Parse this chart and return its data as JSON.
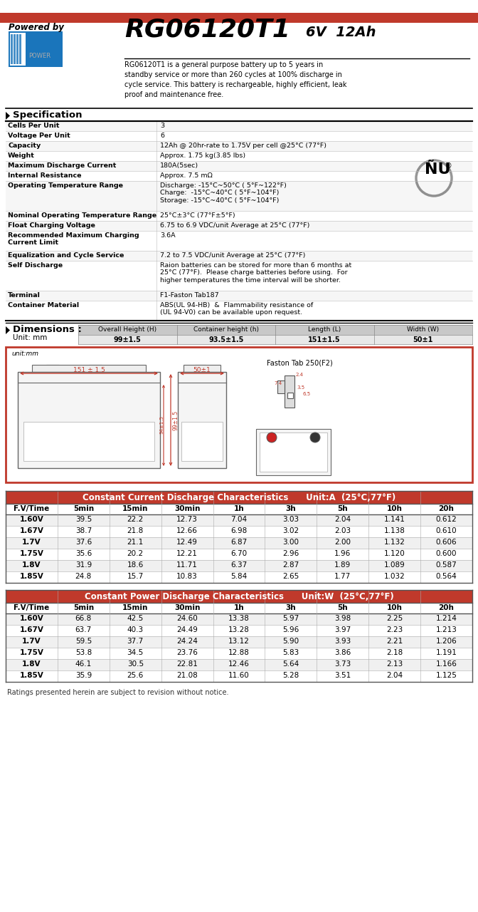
{
  "title_model": "RG06120T1",
  "title_voltage": "6V",
  "title_ah": "12Ah",
  "powered_by": "Powered by",
  "description": "RG06120T1 is a general purpose battery up to 5 years in\nstandby service or more than 260 cycles at 100% discharge in\ncycle service. This battery is rechargeable, highly efficient, leak\nproof and maintenance free.",
  "header_bar_color": "#c0392b",
  "spec_header": "Specification",
  "spec_rows": [
    [
      "Cells Per Unit",
      "3"
    ],
    [
      "Voltage Per Unit",
      "6"
    ],
    [
      "Capacity",
      "12Ah @ 20hr-rate to 1.75V per cell @25°C (77°F)"
    ],
    [
      "Weight",
      "Approx. 1.75 kg(3.85 lbs)"
    ],
    [
      "Maximum Discharge Current",
      "180A(5sec)"
    ],
    [
      "Internal Resistance",
      "Approx. 7.5 mΩ"
    ],
    [
      "Operating Temperature Range",
      "Discharge: -15°C~50°C ( 5°F~122°F)\nCharge:  -15°C~40°C ( 5°F~104°F)\nStorage: -15°C~40°C ( 5°F~104°F)"
    ],
    [
      "Nominal Operating Temperature Range",
      "25°C±3°C (77°F±5°F)"
    ],
    [
      "Float Charging Voltage",
      "6.75 to 6.9 VDC/unit Average at 25°C (77°F)"
    ],
    [
      "Recommended Maximum Charging\nCurrent Limit",
      "3.6A"
    ],
    [
      "Equalization and Cycle Service",
      "7.2 to 7.5 VDC/unit Average at 25°C (77°F)"
    ],
    [
      "Self Discharge",
      "Raion batteries can be stored for more than 6 months at\n25°C (77°F).  Please charge batteries before using.  For\nhigher temperatures the time interval will be shorter."
    ],
    [
      "Terminal",
      "F1-Faston Tab187"
    ],
    [
      "Container Material",
      "ABS(UL 94-HB)  &  Flammability resistance of\n(UL 94-V0) can be available upon request."
    ]
  ],
  "spec_row_heights": [
    14,
    14,
    14,
    14,
    14,
    14,
    42,
    14,
    14,
    28,
    14,
    42,
    14,
    28
  ],
  "dim_header": "Dimensions :",
  "dim_unit": "Unit: mm",
  "dim_cols": [
    "Overall Height (H)",
    "Container height (h)",
    "Length (L)",
    "Width (W)"
  ],
  "dim_vals": [
    "99±1.5",
    "93.5±1.5",
    "151±1.5",
    "50±1"
  ],
  "cc_header": "Constant Current Discharge Characteristics",
  "cc_unit": "Unit:A  (25°C,77°F)",
  "cc_header_color": "#c0392b",
  "cc_cols": [
    "F.V/Time",
    "5min",
    "15min",
    "30min",
    "1h",
    "3h",
    "5h",
    "10h",
    "20h"
  ],
  "cc_rows": [
    [
      "1.60V",
      "39.5",
      "22.2",
      "12.73",
      "7.04",
      "3.03",
      "2.04",
      "1.141",
      "0.612"
    ],
    [
      "1.67V",
      "38.7",
      "21.8",
      "12.66",
      "6.98",
      "3.02",
      "2.03",
      "1.138",
      "0.610"
    ],
    [
      "1.7V",
      "37.6",
      "21.1",
      "12.49",
      "6.87",
      "3.00",
      "2.00",
      "1.132",
      "0.606"
    ],
    [
      "1.75V",
      "35.6",
      "20.2",
      "12.21",
      "6.70",
      "2.96",
      "1.96",
      "1.120",
      "0.600"
    ],
    [
      "1.8V",
      "31.9",
      "18.6",
      "11.71",
      "6.37",
      "2.87",
      "1.89",
      "1.089",
      "0.587"
    ],
    [
      "1.85V",
      "24.8",
      "15.7",
      "10.83",
      "5.84",
      "2.65",
      "1.77",
      "1.032",
      "0.564"
    ]
  ],
  "cp_header": "Constant Power Discharge Characteristics",
  "cp_unit": "Unit:W  (25°C,77°F)",
  "cp_header_color": "#c0392b",
  "cp_cols": [
    "F.V/Time",
    "5min",
    "15min",
    "30min",
    "1h",
    "3h",
    "5h",
    "10h",
    "20h"
  ],
  "cp_rows": [
    [
      "1.60V",
      "66.8",
      "42.5",
      "24.60",
      "13.38",
      "5.97",
      "3.98",
      "2.25",
      "1.214"
    ],
    [
      "1.67V",
      "63.7",
      "40.3",
      "24.49",
      "13.28",
      "5.96",
      "3.97",
      "2.23",
      "1.213"
    ],
    [
      "1.7V",
      "59.5",
      "37.7",
      "24.24",
      "13.12",
      "5.90",
      "3.93",
      "2.21",
      "1.206"
    ],
    [
      "1.75V",
      "53.8",
      "34.5",
      "23.76",
      "12.88",
      "5.83",
      "3.86",
      "2.18",
      "1.191"
    ],
    [
      "1.8V",
      "46.1",
      "30.5",
      "22.81",
      "12.46",
      "5.64",
      "3.73",
      "2.13",
      "1.166"
    ],
    [
      "1.85V",
      "35.9",
      "25.6",
      "21.08",
      "11.60",
      "5.28",
      "3.51",
      "2.04",
      "1.125"
    ]
  ],
  "footer": "Ratings presented herein are subject to revision without notice.",
  "bg_color": "#ffffff",
  "red": "#c0392b",
  "blue_logo": "#1a75bb"
}
